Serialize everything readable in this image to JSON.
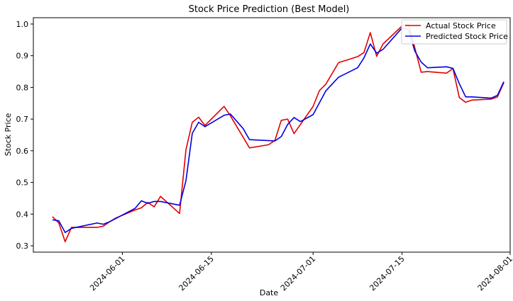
{
  "chart_data": {
    "type": "line",
    "title": "Stock Price Prediction (Best Model)",
    "xlabel": "Date",
    "ylabel": "Stock Price",
    "xlim": [
      "2024-05-18",
      "2024-08-01"
    ],
    "ylim": [
      0.28,
      1.02
    ],
    "x_ticks": [
      "2024-06-01",
      "2024-06-15",
      "2024-07-01",
      "2024-07-15",
      "2024-08-01"
    ],
    "y_ticks": [
      "0.3",
      "0.4",
      "0.5",
      "0.6",
      "0.7",
      "0.8",
      "0.9",
      "1.0"
    ],
    "grid": false,
    "legend_position": "top-right",
    "series": [
      {
        "name": "Actual Stock Price",
        "color": "#e00000",
        "points": [
          [
            "2024-05-21",
            0.392
          ],
          [
            "2024-05-22",
            0.372
          ],
          [
            "2024-05-23",
            0.313
          ],
          [
            "2024-05-24",
            0.358
          ],
          [
            "2024-05-28",
            0.358
          ],
          [
            "2024-05-29",
            0.362
          ],
          [
            "2024-05-30",
            0.376
          ],
          [
            "2024-05-31",
            0.388
          ],
          [
            "2024-06-03",
            0.413
          ],
          [
            "2024-06-04",
            0.42
          ],
          [
            "2024-06-05",
            0.437
          ],
          [
            "2024-06-06",
            0.423
          ],
          [
            "2024-06-07",
            0.456
          ],
          [
            "2024-06-10",
            0.402
          ],
          [
            "2024-06-11",
            0.603
          ],
          [
            "2024-06-12",
            0.69
          ],
          [
            "2024-06-13",
            0.706
          ],
          [
            "2024-06-14",
            0.68
          ],
          [
            "2024-06-17",
            0.74
          ],
          [
            "2024-06-18",
            0.71
          ],
          [
            "2024-06-21",
            0.609
          ],
          [
            "2024-06-24",
            0.619
          ],
          [
            "2024-06-25",
            0.633
          ],
          [
            "2024-06-26",
            0.696
          ],
          [
            "2024-06-27",
            0.7
          ],
          [
            "2024-06-28",
            0.654
          ],
          [
            "2024-07-01",
            0.74
          ],
          [
            "2024-07-02",
            0.79
          ],
          [
            "2024-07-03",
            0.81
          ],
          [
            "2024-07-05",
            0.878
          ],
          [
            "2024-07-08",
            0.897
          ],
          [
            "2024-07-09",
            0.91
          ],
          [
            "2024-07-10",
            0.973
          ],
          [
            "2024-07-11",
            0.898
          ],
          [
            "2024-07-12",
            0.937
          ],
          [
            "2024-07-15",
            0.994
          ],
          [
            "2024-07-16",
            1.0
          ],
          [
            "2024-07-17",
            0.925
          ],
          [
            "2024-07-18",
            0.848
          ],
          [
            "2024-07-19",
            0.85
          ],
          [
            "2024-07-22",
            0.845
          ],
          [
            "2024-07-23",
            0.86
          ],
          [
            "2024-07-24",
            0.768
          ],
          [
            "2024-07-25",
            0.753
          ],
          [
            "2024-07-26",
            0.76
          ],
          [
            "2024-07-29",
            0.763
          ],
          [
            "2024-07-30",
            0.77
          ],
          [
            "2024-07-31",
            0.815
          ]
        ]
      },
      {
        "name": "Predicted Stock Price",
        "color": "#0000e0",
        "points": [
          [
            "2024-05-21",
            0.382
          ],
          [
            "2024-05-22",
            0.379
          ],
          [
            "2024-05-23",
            0.342
          ],
          [
            "2024-05-24",
            0.355
          ],
          [
            "2024-05-28",
            0.372
          ],
          [
            "2024-05-29",
            0.368
          ],
          [
            "2024-05-30",
            0.376
          ],
          [
            "2024-06-03",
            0.418
          ],
          [
            "2024-06-04",
            0.442
          ],
          [
            "2024-06-05",
            0.434
          ],
          [
            "2024-06-06",
            0.44
          ],
          [
            "2024-06-07",
            0.44
          ],
          [
            "2024-06-10",
            0.428
          ],
          [
            "2024-06-11",
            0.505
          ],
          [
            "2024-06-12",
            0.655
          ],
          [
            "2024-06-13",
            0.69
          ],
          [
            "2024-06-14",
            0.676
          ],
          [
            "2024-06-17",
            0.712
          ],
          [
            "2024-06-18",
            0.716
          ],
          [
            "2024-06-20",
            0.67
          ],
          [
            "2024-06-21",
            0.635
          ],
          [
            "2024-06-25",
            0.631
          ],
          [
            "2024-06-26",
            0.645
          ],
          [
            "2024-06-27",
            0.683
          ],
          [
            "2024-06-28",
            0.705
          ],
          [
            "2024-06-29",
            0.692
          ],
          [
            "2024-07-01",
            0.714
          ],
          [
            "2024-07-03",
            0.789
          ],
          [
            "2024-07-05",
            0.832
          ],
          [
            "2024-07-08",
            0.862
          ],
          [
            "2024-07-09",
            0.893
          ],
          [
            "2024-07-10",
            0.937
          ],
          [
            "2024-07-11",
            0.908
          ],
          [
            "2024-07-12",
            0.92
          ],
          [
            "2024-07-15",
            0.988
          ],
          [
            "2024-07-16",
            0.982
          ],
          [
            "2024-07-17",
            0.915
          ],
          [
            "2024-07-18",
            0.88
          ],
          [
            "2024-07-19",
            0.862
          ],
          [
            "2024-07-22",
            0.865
          ],
          [
            "2024-07-23",
            0.86
          ],
          [
            "2024-07-24",
            0.812
          ],
          [
            "2024-07-25",
            0.77
          ],
          [
            "2024-07-26",
            0.77
          ],
          [
            "2024-07-29",
            0.766
          ],
          [
            "2024-07-30",
            0.775
          ],
          [
            "2024-07-31",
            0.818
          ]
        ]
      }
    ]
  }
}
